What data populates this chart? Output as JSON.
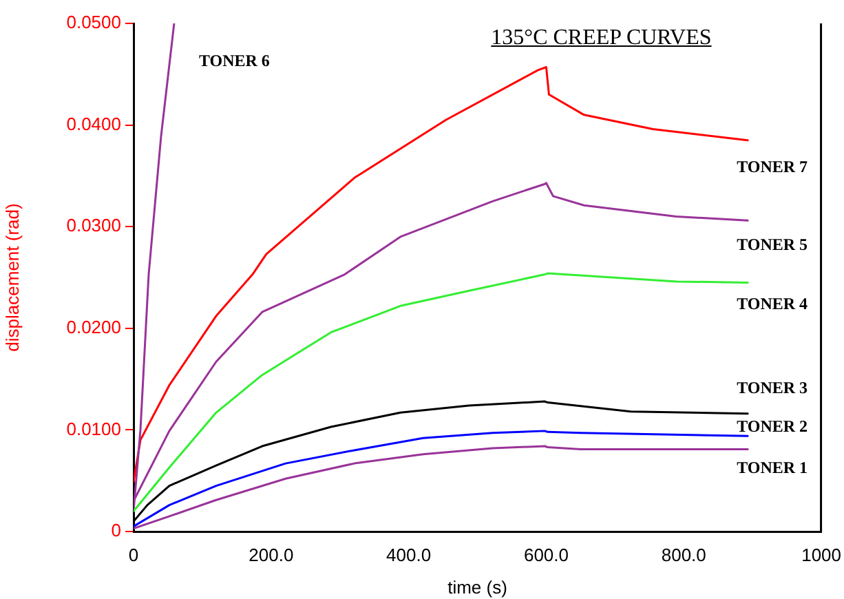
{
  "chart_data": {
    "type": "line",
    "title": "135°C CREEP CURVES",
    "xlabel": "time (s)",
    "ylabel": "displacement (rad)",
    "xlim": [
      0,
      1000
    ],
    "xticks": [
      0,
      {
        "value": 200,
        "label": "200.0"
      },
      {
        "value": 400,
        "label": "400.0"
      },
      {
        "value": 600,
        "label": "600.0"
      },
      {
        "value": 800,
        "label": "800.0"
      },
      1000
    ],
    "ylim": [
      0,
      0.05
    ],
    "yticks": [
      0,
      {
        "value": 0.01,
        "label": "0.0100"
      },
      {
        "value": 0.02,
        "label": "0.0200"
      },
      {
        "value": 0.03,
        "label": "0.0300"
      },
      {
        "value": 0.04,
        "label": "0.0400"
      },
      {
        "value": 0.05,
        "label": "0.0500"
      }
    ],
    "marker": "none",
    "line_style": "solid",
    "legend": false,
    "series": [
      {
        "name": "TONER 1",
        "color": "#993399",
        "x": [
          0,
          52,
          120,
          221,
          321,
          421,
          522,
          598,
          602,
          650,
          893
        ],
        "values": [
          0.0003,
          0.0015,
          0.0031,
          0.0052,
          0.0067,
          0.0076,
          0.0082,
          0.0084,
          0.0083,
          0.0081,
          0.0081
        ]
      },
      {
        "name": "TONER 2",
        "color": "#0000ff",
        "x": [
          0,
          52,
          120,
          221,
          321,
          421,
          522,
          598,
          602,
          650,
          893
        ],
        "values": [
          0.0005,
          0.0026,
          0.0045,
          0.0067,
          0.008,
          0.0092,
          0.0097,
          0.0099,
          0.0098,
          0.0097,
          0.0094
        ]
      },
      {
        "name": "TONER 3",
        "color": "#000000",
        "x": [
          0,
          20,
          52,
          120,
          187,
          287,
          388,
          488,
          598,
          602,
          723,
          893
        ],
        "values": [
          0.001,
          0.0026,
          0.0045,
          0.0065,
          0.0084,
          0.0103,
          0.0117,
          0.0124,
          0.0128,
          0.0127,
          0.0118,
          0.0116
        ]
      },
      {
        "name": "TONER 4",
        "color": "#33ee33",
        "x": [
          0,
          52,
          120,
          187,
          287,
          388,
          488,
          598,
          602,
          650,
          790,
          893
        ],
        "values": [
          0.002,
          0.0063,
          0.0117,
          0.0154,
          0.0196,
          0.0222,
          0.0237,
          0.0253,
          0.0254,
          0.0252,
          0.0246,
          0.0245
        ]
      },
      {
        "name": "TONER 5",
        "color": "#993399",
        "x": [
          0,
          52,
          120,
          187,
          307,
          388,
          522,
          598,
          600,
          610,
          655,
          789,
          893
        ],
        "values": [
          0.003,
          0.0099,
          0.0167,
          0.0216,
          0.0253,
          0.029,
          0.0325,
          0.0342,
          0.0343,
          0.033,
          0.0321,
          0.031,
          0.0306
        ]
      },
      {
        "name": "TONER 6",
        "color": "#993399",
        "x": [
          0,
          5,
          10,
          22,
          40,
          59
        ],
        "values": [
          0.002,
          0.006,
          0.01,
          0.0253,
          0.0389,
          0.05
        ]
      },
      {
        "name": "TONER 7",
        "color": "#ff0000",
        "x": [
          0,
          10,
          52,
          120,
          173,
          193,
          321,
          454,
          588,
          600,
          604,
          655,
          755,
          893
        ],
        "values": [
          0.0049,
          0.009,
          0.0144,
          0.0212,
          0.0253,
          0.0273,
          0.0348,
          0.0405,
          0.0454,
          0.0457,
          0.043,
          0.041,
          0.0396,
          0.0385
        ]
      }
    ]
  }
}
